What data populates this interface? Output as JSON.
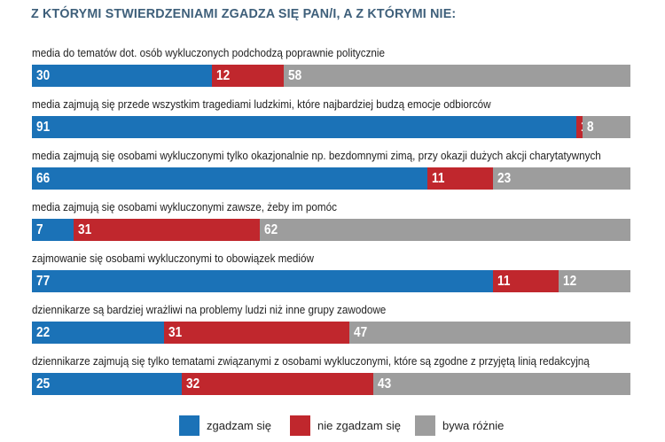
{
  "title": "Z KTÓRYMI STWIERDZENIAMI ZGADZA SIĘ PAN/I, A Z KTÓRYMI NIE:",
  "colors": {
    "agree": "#1b72b7",
    "disagree": "#c0272d",
    "varies": "#9d9d9d"
  },
  "chart_data": {
    "type": "bar",
    "orientation": "horizontal-stacked-100",
    "title": "Z KTÓRYMI STWIERDZENIAMI ZGADZA SIĘ PAN/I, A Z KTÓRYMI NIE:",
    "categories": [
      "media do tematów dot. osób wykluczonych podchodzą poprawnie politycznie",
      "media zajmują się przede wszystkim tragediami ludzkimi, które najbardziej budzą emocje odbiorców",
      "media zajmują się osobami wykluczonymi tylko okazjonalnie np. bezdomnymi zimą, przy okazji dużych akcji charytatywnych",
      "media zajmują się osobami wykluczonymi zawsze, żeby im pomóc",
      "zajmowanie się osobami wykluczonymi to obowiązek mediów",
      "dziennikarze są bardziej wrażliwi na problemy ludzi niż inne grupy zawodowe",
      "dziennikarze zajmują się tylko tematami związanymi z osobami wykluczonymi, które są zgodne z przyjętą linią redakcyjną"
    ],
    "series": [
      {
        "name": "zgadzam się",
        "values": [
          30,
          91,
          66,
          7,
          77,
          22,
          25
        ]
      },
      {
        "name": "nie zgadzam się",
        "values": [
          12,
          1,
          11,
          31,
          11,
          31,
          32
        ]
      },
      {
        "name": "bywa różnie",
        "values": [
          58,
          8,
          23,
          62,
          12,
          47,
          43
        ]
      }
    ],
    "xlim": [
      0,
      100
    ],
    "legend": "bottom"
  }
}
